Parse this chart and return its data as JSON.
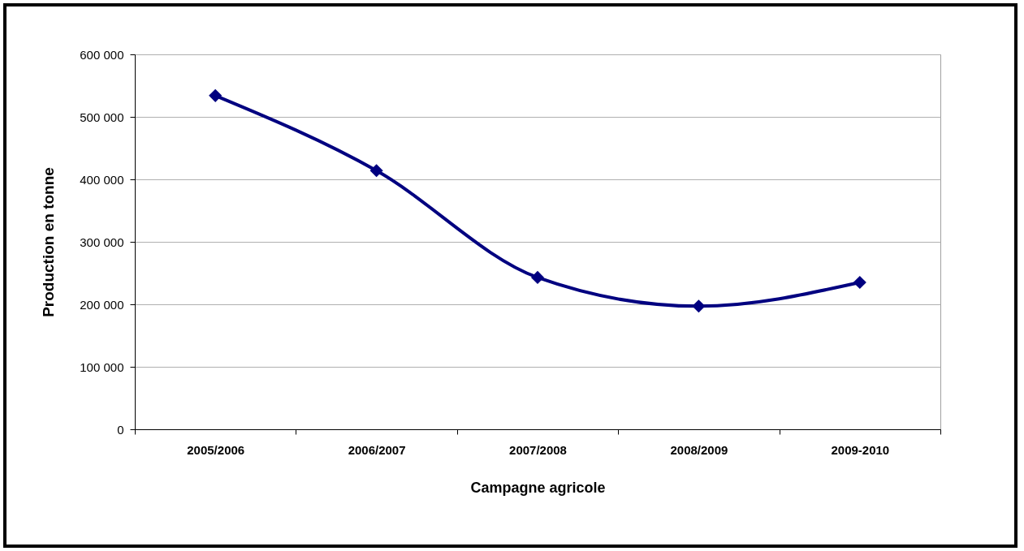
{
  "chart_data": {
    "type": "line",
    "xlabel": "Campagne agricole",
    "ylabel": "Production en tonne",
    "categories": [
      "2005/2006",
      "2006/2007",
      "2007/2008",
      "2008/2009",
      "2009-2010"
    ],
    "series": [
      {
        "color": "#000080",
        "values": [
          534000,
          414000,
          243000,
          197000,
          235000
        ]
      }
    ],
    "ylim": [
      0,
      600000
    ],
    "yticks": [
      {
        "value": 0,
        "label": "0"
      },
      {
        "value": 100000,
        "label": "100 000"
      },
      {
        "value": 200000,
        "label": "200 000"
      },
      {
        "value": 300000,
        "label": "300 000"
      },
      {
        "value": 400000,
        "label": "400 000"
      },
      {
        "value": 500000,
        "label": "500 000"
      },
      {
        "value": 600000,
        "label": "600 000"
      }
    ],
    "grid": "y",
    "marker": "diamond",
    "line_style": "solid"
  }
}
